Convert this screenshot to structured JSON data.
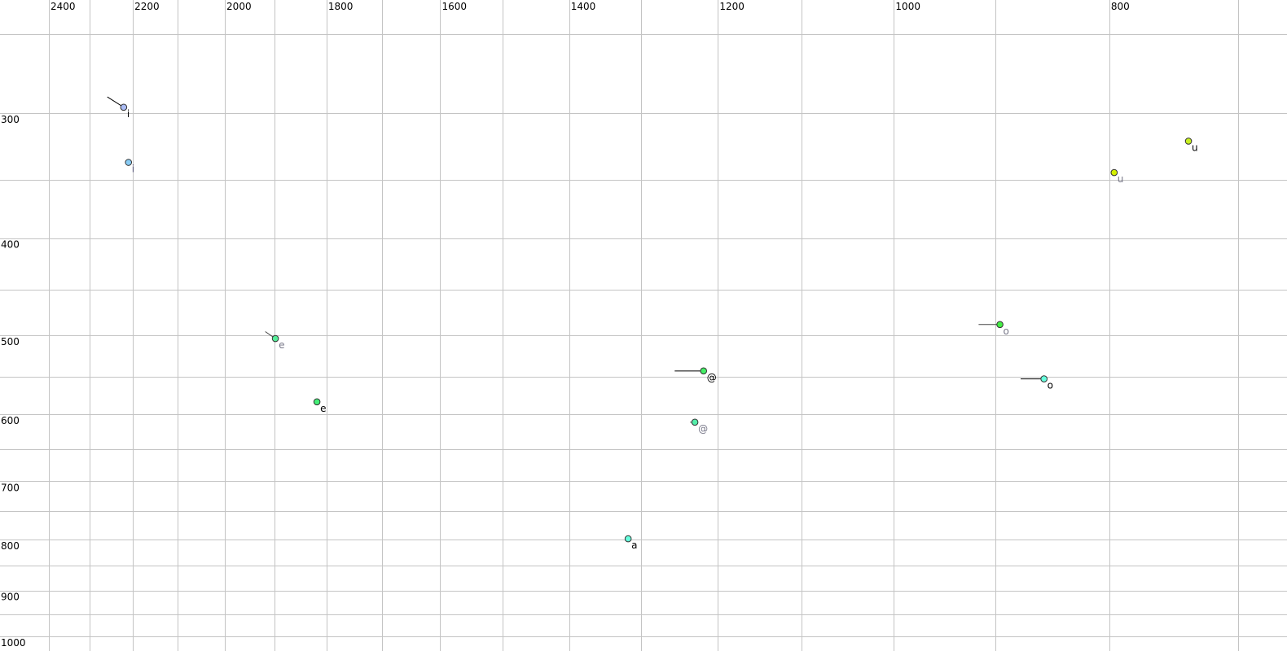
{
  "chart_data": {
    "type": "scatter",
    "title": "",
    "xlabel": "",
    "ylabel": "",
    "x_scale": "log",
    "y_scale": "log",
    "x_reversed": true,
    "xlim": [
      2550,
      640
    ],
    "ylim": [
      250,
      1030
    ],
    "x_major_ticks": [
      2400,
      2200,
      2000,
      1800,
      1600,
      1400,
      1200,
      1000,
      800
    ],
    "x_minor_grid": [
      2300,
      2100,
      1900,
      1700,
      1500,
      1300,
      1100,
      900,
      700
    ],
    "y_major_ticks": [
      300,
      400,
      500,
      600,
      700,
      800,
      900,
      1000
    ],
    "y_minor_grid": [
      250,
      350,
      450,
      550,
      650,
      750,
      850,
      950
    ],
    "grid": true,
    "points": [
      {
        "label": "i",
        "f2": 2221,
        "f1": 296,
        "tail_f2": 2259,
        "tail_f1": 289,
        "color": "#aabbf4",
        "label_color": "#000000"
      },
      {
        "label": "i",
        "f2": 2210,
        "f1": 336,
        "color": "#88ccf5",
        "label_color": "#555577"
      },
      {
        "label": "u",
        "f2": 737,
        "f1": 320,
        "color": "#c8f020",
        "label_color": "#000000"
      },
      {
        "label": "u",
        "f2": 796,
        "f1": 344,
        "color": "#d4f000",
        "label_color": "#777788"
      },
      {
        "label": "e",
        "f2": 1898,
        "f1": 504,
        "tail_f2": 1918,
        "tail_f1": 496,
        "color": "#55ee99",
        "label_color": "#777788"
      },
      {
        "label": "e",
        "f2": 1818,
        "f1": 583,
        "color": "#44ee77",
        "label_color": "#000000"
      },
      {
        "label": "@",
        "f2": 1218,
        "f1": 543,
        "tail_f2": 1255,
        "tail_f1": 543,
        "color": "#44ee66",
        "label_color": "#000000"
      },
      {
        "label": "@",
        "f2": 1229,
        "f1": 611,
        "tail_f2": 1235,
        "tail_f1": 611,
        "color": "#55eeaa",
        "label_color": "#777788"
      },
      {
        "label": "a",
        "f2": 1317,
        "f1": 799,
        "color": "#66ffdd",
        "label_color": "#000000"
      },
      {
        "label": "o",
        "f2": 896,
        "f1": 488,
        "tail_f2": 916,
        "tail_f1": 488,
        "color": "#44ee44",
        "label_color": "#777788"
      },
      {
        "label": "o",
        "f2": 856,
        "f1": 553,
        "tail_f2": 877,
        "tail_f1": 553,
        "color": "#66ffdd",
        "label_color": "#000000"
      }
    ]
  }
}
